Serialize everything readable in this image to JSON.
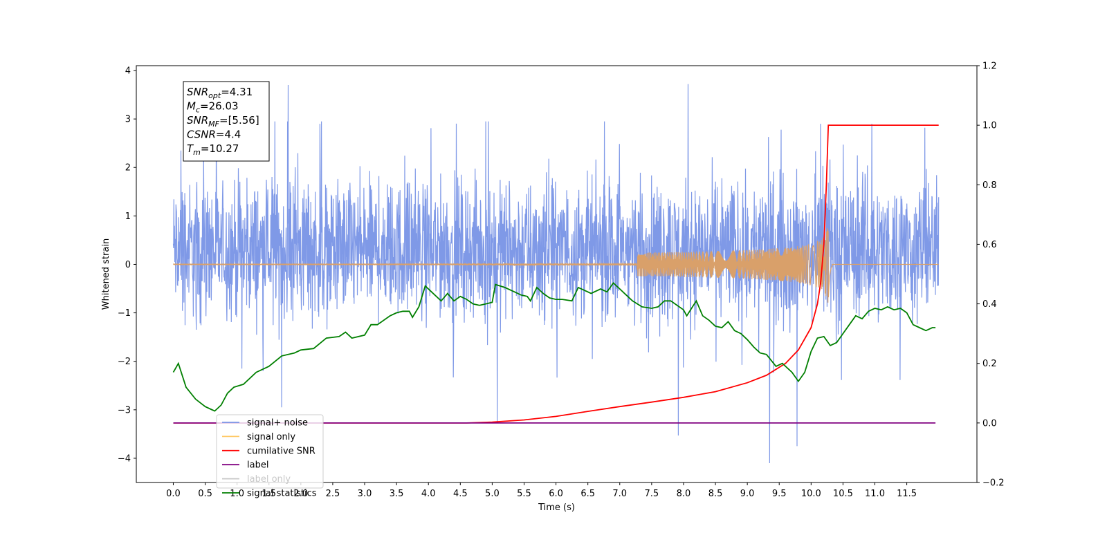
{
  "chart_data": {
    "type": "line",
    "xlabel": "Time (s)",
    "ylabel_left": "Whitened strain",
    "ylabel_right": "",
    "xlim": [
      -0.58,
      12.6
    ],
    "ylim_left": [
      -4.5,
      4.1
    ],
    "ylim_right": [
      -0.2,
      1.2
    ],
    "x_ticks": [
      0.0,
      0.5,
      1.0,
      1.5,
      2.0,
      2.5,
      3.0,
      3.5,
      4.0,
      4.5,
      5.0,
      5.5,
      6.0,
      6.5,
      7.0,
      7.5,
      8.0,
      8.5,
      9.0,
      9.5,
      10.0,
      10.5,
      11.0,
      11.5
    ],
    "x_tick_labels": [
      "0.0",
      "0.5",
      "1.0",
      "1.5",
      "2.0",
      "2.5",
      "3.0",
      "3.5",
      "4.0",
      "4.5",
      "5.0",
      "5.5",
      "6.0",
      "6.5",
      "7.0",
      "7.5",
      "8.0",
      "8.5",
      "9.0",
      "9.5",
      "10.0",
      "10.5",
      "11.0",
      "11.5"
    ],
    "y_left_ticks": [
      4,
      3,
      2,
      1,
      0,
      -1,
      -2,
      -3,
      -4
    ],
    "y_left_tick_labels": [
      "4",
      "3",
      "2",
      "1",
      "0",
      "−1",
      "−2",
      "−3",
      "−4"
    ],
    "y_right_ticks": [
      1.2,
      1.0,
      0.8,
      0.6,
      0.4,
      0.2,
      0.0,
      -0.2
    ],
    "y_right_tick_labels": [
      "1.2",
      "1.0",
      "0.8",
      "0.6",
      "0.4",
      "0.2",
      "0.0",
      "−0.2"
    ],
    "annotation": [
      {
        "base": "SNR",
        "sub": "opt",
        "value": "=4.31"
      },
      {
        "base": "M",
        "sub": "c",
        "value": "=26.03"
      },
      {
        "base": "SNR",
        "sub": "MF",
        "value": "=[5.56]"
      },
      {
        "base": "CSNR",
        "sub": "",
        "value": "=4.4"
      },
      {
        "base": "T",
        "sub": "m",
        "value": "=10.27"
      }
    ],
    "legend": {
      "placement": "lower-left",
      "entries": [
        {
          "label": "signal+ noise",
          "color": "#7893e6"
        },
        {
          "label": "signal only",
          "color": "#ffc966"
        },
        {
          "label": "cumilative SNR",
          "color": "#ff0000"
        },
        {
          "label": "label",
          "color": "#800080"
        },
        {
          "label": "label only",
          "color": "#c8c8c8"
        },
        {
          "label": "signal statistics",
          "color": "#007f00"
        }
      ]
    },
    "series": [
      {
        "name": "signal+ noise",
        "axis": "left",
        "color": "#7893e6",
        "noise_band": [
          -1.4,
          2.0
        ],
        "x_range": [
          0.0,
          12.0
        ],
        "spikes": [
          {
            "x": 1.8,
            "y": 3.7
          },
          {
            "x": 8.07,
            "y": 3.72
          },
          {
            "x": 7.92,
            "y": -3.53
          },
          {
            "x": 9.35,
            "y": -4.1
          },
          {
            "x": 9.78,
            "y": -3.75
          },
          {
            "x": 1.7,
            "y": -2.95
          },
          {
            "x": 5.08,
            "y": -3.25
          },
          {
            "x": 9.53,
            "y": 2.78
          },
          {
            "x": 10.15,
            "y": 2.9
          },
          {
            "x": 10.95,
            "y": 2.9
          },
          {
            "x": 4.9,
            "y": 2.95
          },
          {
            "x": 2.3,
            "y": 2.9
          },
          {
            "x": 0.12,
            "y": 2.35
          }
        ]
      },
      {
        "name": "signal only",
        "axis": "left",
        "color": "#d9a06a",
        "x_range": [
          0.0,
          12.0
        ],
        "chirp_merger_time": 10.27,
        "peak_amplitude": 0.85
      },
      {
        "name": "cumilative SNR",
        "axis": "right",
        "color": "#ff0000",
        "x": [
          0.0,
          4.0,
          4.6,
          5.0,
          5.5,
          6.0,
          6.5,
          7.0,
          7.5,
          8.0,
          8.5,
          9.0,
          9.3,
          9.6,
          9.8,
          10.0,
          10.1,
          10.15,
          10.2,
          10.24,
          10.27,
          12.0
        ],
        "values": [
          0.0,
          0.0,
          0.0,
          0.003,
          0.01,
          0.022,
          0.039,
          0.055,
          0.07,
          0.086,
          0.105,
          0.135,
          0.16,
          0.2,
          0.245,
          0.32,
          0.4,
          0.47,
          0.6,
          0.8,
          1.0,
          1.0
        ]
      },
      {
        "name": "label",
        "axis": "right",
        "color": "#800080",
        "x": [
          0.0,
          11.95
        ],
        "values": [
          0.0,
          0.0
        ]
      },
      {
        "name": "signal statistics",
        "axis": "right",
        "color": "#007f00",
        "x": [
          0.0,
          0.08,
          0.2,
          0.35,
          0.5,
          0.6,
          0.65,
          0.75,
          0.85,
          0.95,
          1.1,
          1.3,
          1.5,
          1.7,
          1.9,
          2.0,
          2.2,
          2.4,
          2.6,
          2.7,
          2.8,
          3.0,
          3.1,
          3.2,
          3.4,
          3.5,
          3.6,
          3.7,
          3.75,
          3.85,
          3.95,
          4.1,
          4.2,
          4.3,
          4.4,
          4.5,
          4.6,
          4.7,
          4.8,
          4.9,
          5.0,
          5.05,
          5.2,
          5.35,
          5.45,
          5.55,
          5.6,
          5.7,
          5.8,
          5.9,
          6.0,
          6.1,
          6.25,
          6.35,
          6.45,
          6.55,
          6.7,
          6.8,
          6.9,
          7.0,
          7.1,
          7.2,
          7.35,
          7.5,
          7.6,
          7.7,
          7.8,
          7.9,
          8.0,
          8.05,
          8.2,
          8.3,
          8.4,
          8.5,
          8.6,
          8.7,
          8.8,
          8.9,
          9.0,
          9.1,
          9.2,
          9.3,
          9.45,
          9.55,
          9.7,
          9.8,
          9.9,
          10.0,
          10.1,
          10.2,
          10.3,
          10.4,
          10.5,
          10.6,
          10.7,
          10.8,
          10.9,
          11.0,
          11.1,
          11.2,
          11.3,
          11.4,
          11.5,
          11.6,
          11.7,
          11.8,
          11.9,
          11.95
        ],
        "values": [
          0.17,
          0.2,
          0.12,
          0.08,
          0.055,
          0.045,
          0.04,
          0.06,
          0.1,
          0.12,
          0.13,
          0.17,
          0.19,
          0.225,
          0.235,
          0.245,
          0.25,
          0.285,
          0.29,
          0.305,
          0.285,
          0.295,
          0.33,
          0.33,
          0.36,
          0.37,
          0.375,
          0.375,
          0.355,
          0.39,
          0.46,
          0.43,
          0.41,
          0.435,
          0.41,
          0.425,
          0.415,
          0.4,
          0.395,
          0.4,
          0.405,
          0.465,
          0.455,
          0.44,
          0.43,
          0.425,
          0.41,
          0.455,
          0.435,
          0.42,
          0.415,
          0.415,
          0.41,
          0.455,
          0.445,
          0.435,
          0.45,
          0.44,
          0.47,
          0.45,
          0.43,
          0.41,
          0.39,
          0.385,
          0.39,
          0.41,
          0.41,
          0.395,
          0.38,
          0.36,
          0.41,
          0.36,
          0.345,
          0.325,
          0.32,
          0.34,
          0.31,
          0.3,
          0.28,
          0.255,
          0.235,
          0.23,
          0.19,
          0.2,
          0.17,
          0.14,
          0.17,
          0.24,
          0.285,
          0.29,
          0.26,
          0.27,
          0.3,
          0.33,
          0.36,
          0.35,
          0.375,
          0.385,
          0.38,
          0.39,
          0.38,
          0.385,
          0.37,
          0.33,
          0.32,
          0.31,
          0.32,
          0.32
        ]
      }
    ]
  }
}
